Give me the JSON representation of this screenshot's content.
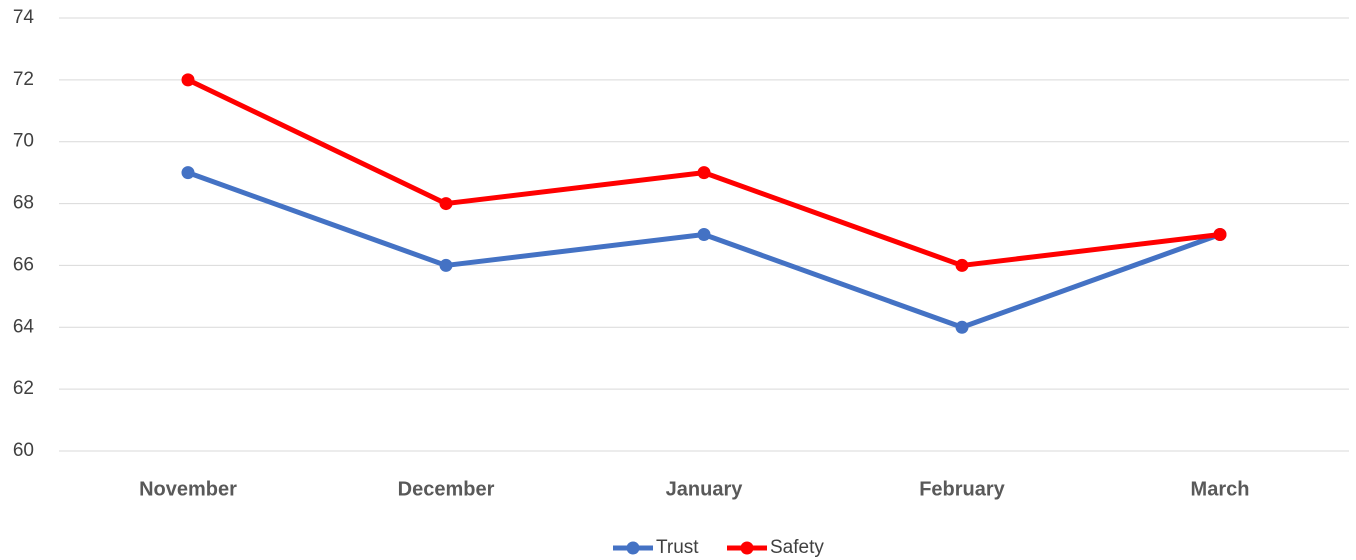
{
  "chart_data": {
    "type": "line",
    "categories": [
      "November",
      "December",
      "January",
      "February",
      "March"
    ],
    "series": [
      {
        "name": "Trust",
        "color": "#4472c4",
        "values": [
          69,
          66,
          67,
          64,
          67
        ]
      },
      {
        "name": "Safety",
        "color": "#ff0000",
        "values": [
          72,
          68,
          69,
          66,
          67
        ]
      }
    ],
    "ylim": [
      60,
      74
    ],
    "yticks": [
      60,
      62,
      64,
      66,
      68,
      70,
      72,
      74
    ],
    "grid": true,
    "legend": "bottom"
  }
}
